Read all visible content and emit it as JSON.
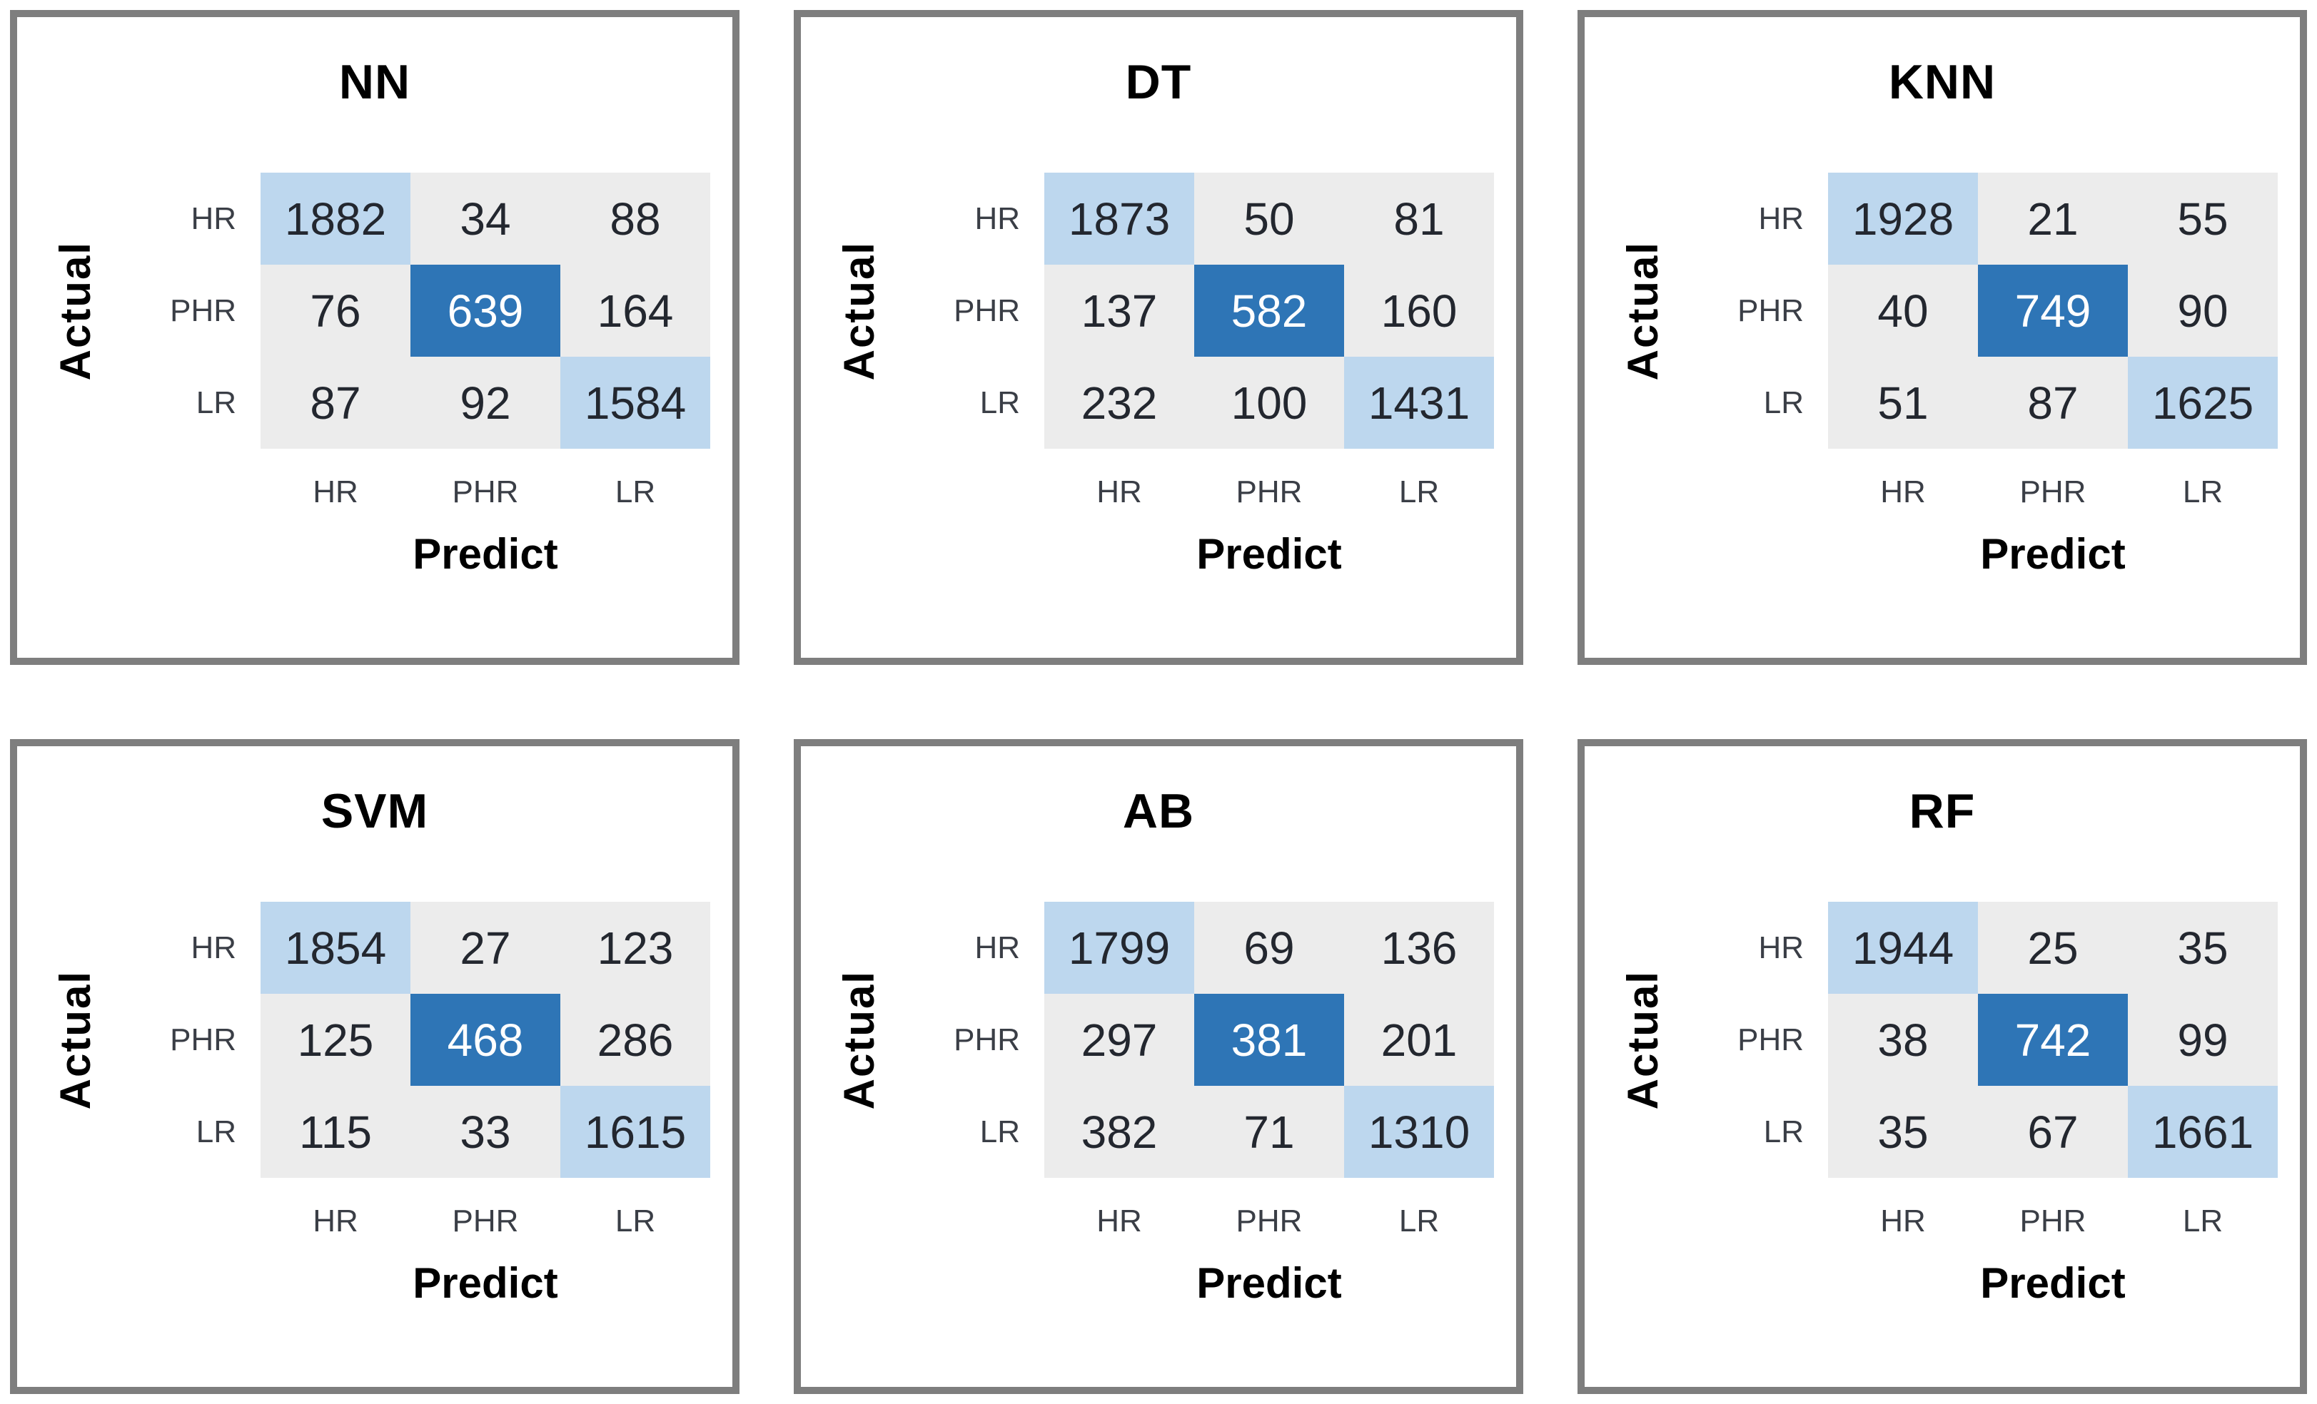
{
  "figure": {
    "row_axis_label": "Actual",
    "col_axis_label": "Predict",
    "classes": [
      "HR",
      "PHR",
      "LR"
    ],
    "panels": [
      {
        "title": "NN",
        "matrix": [
          [
            1882,
            34,
            88
          ],
          [
            76,
            639,
            164
          ],
          [
            87,
            92,
            1584
          ]
        ]
      },
      {
        "title": "DT",
        "matrix": [
          [
            1873,
            50,
            81
          ],
          [
            137,
            582,
            160
          ],
          [
            232,
            100,
            1431
          ]
        ]
      },
      {
        "title": "KNN",
        "matrix": [
          [
            1928,
            21,
            55
          ],
          [
            40,
            749,
            90
          ],
          [
            51,
            87,
            1625
          ]
        ]
      },
      {
        "title": "SVM",
        "matrix": [
          [
            1854,
            27,
            123
          ],
          [
            125,
            468,
            286
          ],
          [
            115,
            33,
            1615
          ]
        ]
      },
      {
        "title": "AB",
        "matrix": [
          [
            1799,
            69,
            136
          ],
          [
            297,
            381,
            201
          ],
          [
            382,
            71,
            1310
          ]
        ]
      },
      {
        "title": "RF",
        "matrix": [
          [
            1944,
            25,
            35
          ],
          [
            38,
            742,
            99
          ],
          [
            35,
            67,
            1661
          ]
        ]
      }
    ],
    "colors": {
      "diagonal_light": "#BDD7EE",
      "diagonal_dark": "#2E75B6",
      "off_diagonal": "#ECECEC",
      "panel_border": "#7E7E7E",
      "dark_cell_text": "#FFFFFF",
      "cell_text": "#23272F",
      "label_text": "#3A3E46",
      "title_text": "#000000"
    }
  },
  "chart_data": [
    {
      "type": "heatmap",
      "title": "NN",
      "xlabel": "Predict",
      "ylabel": "Actual",
      "x_categories": [
        "HR",
        "PHR",
        "LR"
      ],
      "y_categories": [
        "HR",
        "PHR",
        "LR"
      ],
      "values": [
        [
          1882,
          34,
          88
        ],
        [
          76,
          639,
          164
        ],
        [
          87,
          92,
          1584
        ]
      ]
    },
    {
      "type": "heatmap",
      "title": "DT",
      "xlabel": "Predict",
      "ylabel": "Actual",
      "x_categories": [
        "HR",
        "PHR",
        "LR"
      ],
      "y_categories": [
        "HR",
        "PHR",
        "LR"
      ],
      "values": [
        [
          1873,
          50,
          81
        ],
        [
          137,
          582,
          160
        ],
        [
          232,
          100,
          1431
        ]
      ]
    },
    {
      "type": "heatmap",
      "title": "KNN",
      "xlabel": "Predict",
      "ylabel": "Actual",
      "x_categories": [
        "HR",
        "PHR",
        "LR"
      ],
      "y_categories": [
        "HR",
        "PHR",
        "LR"
      ],
      "values": [
        [
          1928,
          21,
          55
        ],
        [
          40,
          749,
          90
        ],
        [
          51,
          87,
          1625
        ]
      ]
    },
    {
      "type": "heatmap",
      "title": "SVM",
      "xlabel": "Predict",
      "ylabel": "Actual",
      "x_categories": [
        "HR",
        "PHR",
        "LR"
      ],
      "y_categories": [
        "HR",
        "PHR",
        "LR"
      ],
      "values": [
        [
          1854,
          27,
          123
        ],
        [
          125,
          468,
          286
        ],
        [
          115,
          33,
          1615
        ]
      ]
    },
    {
      "type": "heatmap",
      "title": "AB",
      "xlabel": "Predict",
      "ylabel": "Actual",
      "x_categories": [
        "HR",
        "PHR",
        "LR"
      ],
      "y_categories": [
        "HR",
        "PHR",
        "LR"
      ],
      "values": [
        [
          1799,
          69,
          136
        ],
        [
          297,
          381,
          201
        ],
        [
          382,
          71,
          1310
        ]
      ]
    },
    {
      "type": "heatmap",
      "title": "RF",
      "xlabel": "Predict",
      "ylabel": "Actual",
      "x_categories": [
        "HR",
        "PHR",
        "LR"
      ],
      "y_categories": [
        "HR",
        "PHR",
        "LR"
      ],
      "values": [
        [
          1944,
          25,
          35
        ],
        [
          38,
          742,
          99
        ],
        [
          35,
          67,
          1661
        ]
      ]
    }
  ]
}
